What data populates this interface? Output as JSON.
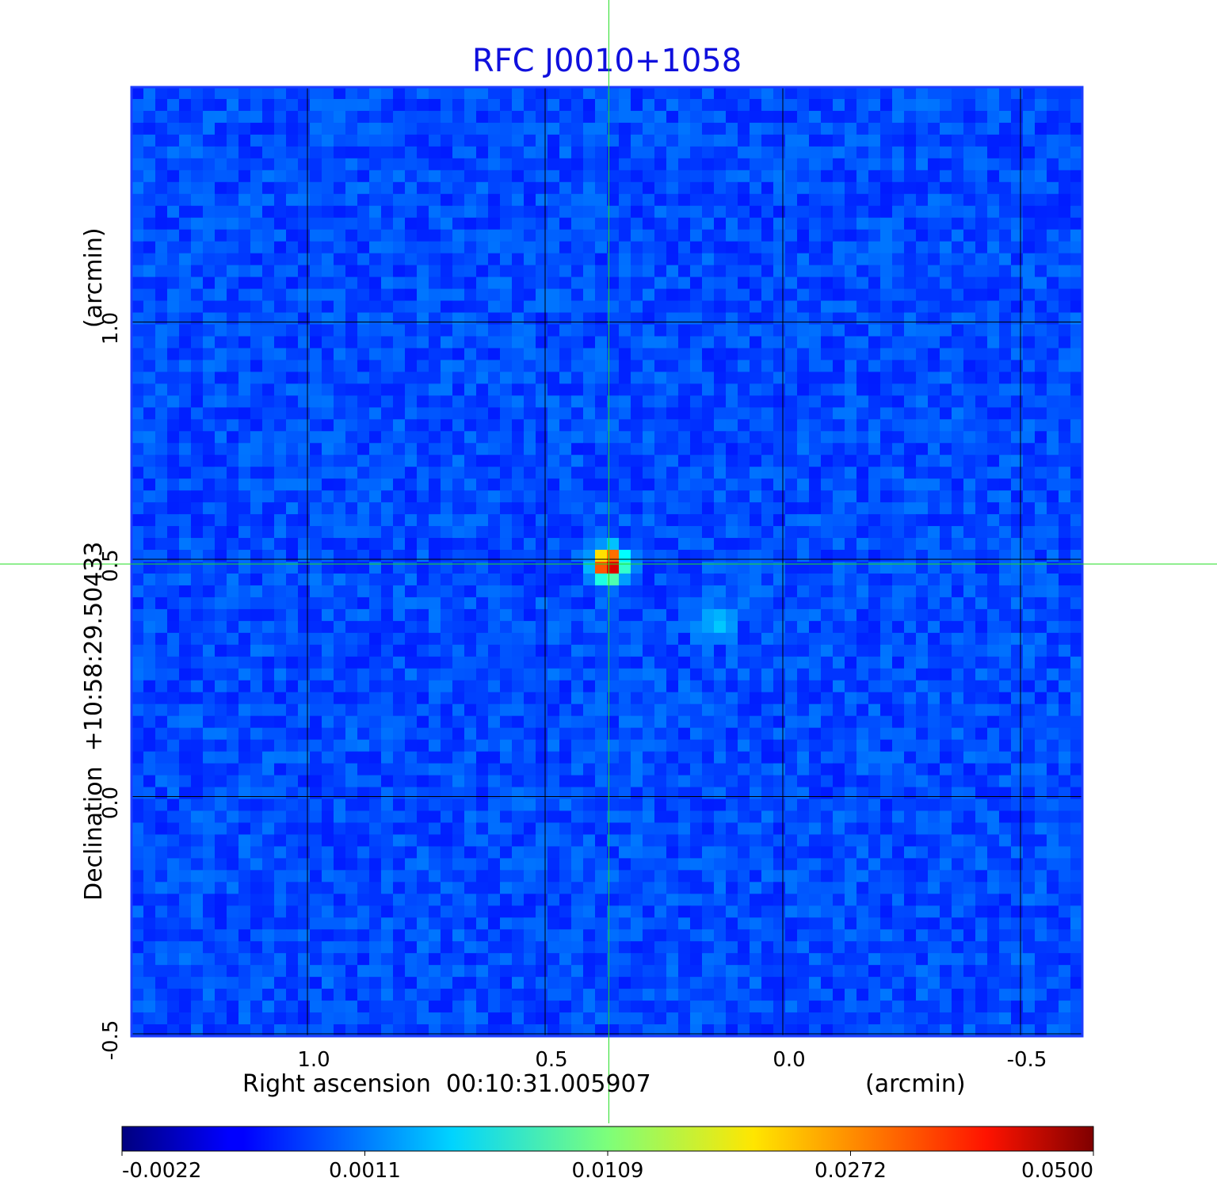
{
  "chart_data": {
    "type": "heatmap",
    "title": "RFC J0010+1058",
    "xlabel": "Right ascension  00:10:31.005907",
    "xunit": "(arcmin)",
    "ylabel": "Declination  +10:58:29.50433",
    "yunit": "(arcmin)",
    "x_direction": "decreasing to the right",
    "xlim": [
      1.37,
      -0.63
    ],
    "ylim": [
      -0.505,
      1.495
    ],
    "x_ticks": [
      {
        "value": 1.0,
        "label": "1.0"
      },
      {
        "value": 0.5,
        "label": "0.5"
      },
      {
        "value": 0.0,
        "label": "0.0"
      },
      {
        "value": -0.5,
        "label": "-0.5"
      }
    ],
    "y_ticks": [
      {
        "value": -0.5,
        "label": "-0.5"
      },
      {
        "value": 0.0,
        "label": "0.0"
      },
      {
        "value": 0.5,
        "label": "0.5"
      },
      {
        "value": 1.0,
        "label": "1.0"
      }
    ],
    "grid": true,
    "crosshair": {
      "x": 0.366,
      "y": 0.49
    },
    "colormap": "jet",
    "colorbar": {
      "placement": "bottom",
      "ticks": [
        {
          "value": -0.0022,
          "label": "-0.0022"
        },
        {
          "value": 0.0011,
          "label": "0.0011"
        },
        {
          "value": 0.0109,
          "label": "0.0109"
        },
        {
          "value": 0.0272,
          "label": "0.0272"
        },
        {
          "value": 0.05,
          "label": "0.0500"
        }
      ]
    },
    "background_level": 0.0004,
    "sources": [
      {
        "x": 0.366,
        "y": 0.49,
        "peak": 0.05,
        "sigma": 0.018
      },
      {
        "x": 0.14,
        "y": 0.37,
        "peak": 0.004,
        "sigma": 0.022
      }
    ],
    "colors": {
      "title": "#1010dd",
      "frame": "#1e3cff",
      "grid": "#000000",
      "crosshair": "#22dd22",
      "background_map": "#1a78f0"
    }
  }
}
